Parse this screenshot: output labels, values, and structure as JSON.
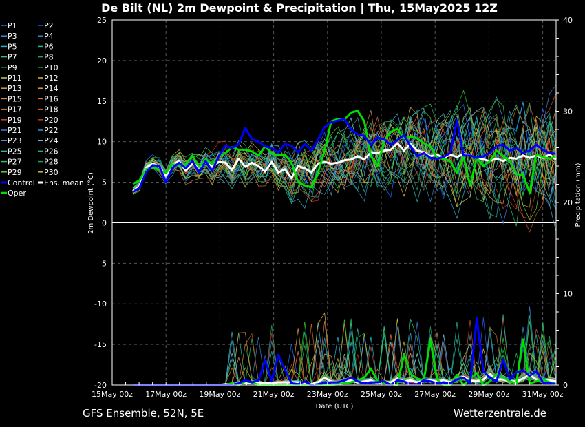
{
  "chart_data": {
    "type": "line",
    "title": "De Bilt  (NL)  2m Dewpoint & Precipitation | Thu, 15May2025 12Z",
    "footer_left": "GFS Ensemble, 52N, 5E",
    "footer_right": "Wetterzentrale.de",
    "xlabel": "Date (UTC)",
    "ylabel_left": "2m Dewpoint (°C)",
    "ylabel_right": "Precipitation (mm)",
    "x_ticks": [
      "15May 00z",
      "17May 00z",
      "19May 00z",
      "21May 00z",
      "23May 00z",
      "25May 00z",
      "27May 00z",
      "29May 00z",
      "31May 00z"
    ],
    "x_start_day": 15,
    "x_end_day": 31,
    "x_step_hours": 6,
    "ylim_left": [
      -20,
      25
    ],
    "y_ticks_left": [
      25,
      20,
      15,
      10,
      5,
      0,
      -5,
      -10,
      -15,
      -20
    ],
    "ylim_right": [
      0,
      40
    ],
    "y_ticks_right": [
      40,
      30,
      20,
      10,
      0
    ],
    "grid": true,
    "legend": {
      "placement": "left",
      "entries": [
        {
          "name": "P1",
          "color": "#1f6fff"
        },
        {
          "name": "P2",
          "color": "#2a5cff"
        },
        {
          "name": "P3",
          "color": "#3d8bd6"
        },
        {
          "name": "P4",
          "color": "#3a7fc8"
        },
        {
          "name": "P5",
          "color": "#2ab3c7"
        },
        {
          "name": "P6",
          "color": "#1fb89a"
        },
        {
          "name": "P7",
          "color": "#2fbf7e"
        },
        {
          "name": "P8",
          "color": "#21a55e"
        },
        {
          "name": "P9",
          "color": "#1dbb4a"
        },
        {
          "name": "P10",
          "color": "#27d22a"
        },
        {
          "name": "P11",
          "color": "#c8c85a"
        },
        {
          "name": "P12",
          "color": "#d8b64a"
        },
        {
          "name": "P13",
          "color": "#c9a640"
        },
        {
          "name": "P14",
          "color": "#d89c3a"
        },
        {
          "name": "P15",
          "color": "#d48a50"
        },
        {
          "name": "P16",
          "color": "#d07840"
        },
        {
          "name": "P17",
          "color": "#d06a30"
        },
        {
          "name": "P18",
          "color": "#c9572a"
        },
        {
          "name": "P19",
          "color": "#c44a2a"
        },
        {
          "name": "P20",
          "color": "#c03a20"
        },
        {
          "name": "P21",
          "color": "#3a7fd8"
        },
        {
          "name": "P22",
          "color": "#2e9ad0"
        },
        {
          "name": "P23",
          "color": "#4aa7d8"
        },
        {
          "name": "P24",
          "color": "#6ec7d8"
        },
        {
          "name": "P25",
          "color": "#2fb7a8"
        },
        {
          "name": "P26",
          "color": "#25b090"
        },
        {
          "name": "P27",
          "color": "#2fc06a"
        },
        {
          "name": "P28",
          "color": "#22a060"
        },
        {
          "name": "P29",
          "color": "#5ecc3a"
        },
        {
          "name": "P30",
          "color": "#c0c030"
        },
        {
          "name": "Control",
          "color": "#0000ff"
        },
        {
          "name": "Ens. mean",
          "color": "#ffffff"
        },
        {
          "name": "Oper",
          "color": "#00dd00"
        }
      ]
    },
    "series": [
      {
        "name": "Control",
        "color": "#0000ff",
        "width": 3,
        "dewpoint": [
          3.8,
          4.3,
          6.2,
          7.1,
          7.0,
          5.0,
          6.8,
          7.4,
          6.7,
          7.6,
          6.2,
          7.6,
          6.4,
          8.2,
          9.5,
          9.2,
          9.7,
          11.7,
          10.3,
          10.0,
          9.4,
          9.2,
          8.7,
          9.7,
          9.5,
          8.7,
          9.7,
          8.9,
          10.2,
          11.8,
          12.4,
          12.6,
          12.8,
          11.5,
          10.9,
          10.7,
          9.6,
          10.5,
          10.3,
          9.6,
          10.2,
          10.8,
          9.4,
          8.2,
          8.6,
          8.0,
          7.9,
          8.1,
          8.6,
          12.6,
          8.3,
          8.3,
          8.0,
          8.2,
          8.6,
          9.5,
          9.6,
          8.9,
          9.2,
          8.6,
          8.9,
          9.6,
          9.0,
          8.6,
          8.5
        ],
        "precip": [
          0,
          0,
          0,
          0,
          0,
          0,
          0,
          0,
          0,
          0,
          0,
          0,
          0,
          0,
          0,
          0,
          0.2,
          0.5,
          0.3,
          0.5,
          2.7,
          0.4,
          3.3,
          1.7,
          0.2,
          0.1,
          0.4,
          0,
          0.1,
          0.2,
          0.3,
          0.3,
          0.5,
          0.8,
          0.4,
          0.2,
          0.3,
          0.3,
          0.4,
          0,
          0.5,
          0.4,
          0.1,
          0.1,
          0.5,
          0.4,
          0.2,
          0.3,
          0.2,
          0.6,
          0.8,
          0.2,
          7.3,
          1.5,
          0.8,
          0.4,
          2.8,
          0.6,
          1.4,
          1.6,
          1.0,
          1.5,
          0.3,
          0.2,
          0.1
        ]
      },
      {
        "name": "Oper",
        "color": "#00dd00",
        "width": 3,
        "dewpoint": [
          4.8,
          5.2,
          6.6,
          6.8,
          6.5,
          6.1,
          7.2,
          7.1,
          7.2,
          8.3,
          6.9,
          7.8,
          7.3,
          8.1,
          8.6,
          9.3,
          9.0,
          9.0,
          8.8,
          8.3,
          9.4,
          8.6,
          8.3,
          8.4,
          7.4,
          5.0,
          4.6,
          4.4,
          6.2,
          8.9,
          12.5,
          12.8,
          12.7,
          13.6,
          13.8,
          12.5,
          8.2,
          7.0,
          10.1,
          11.2,
          11.6,
          10.4,
          10.6,
          10.4,
          9.8,
          9.4,
          8.0,
          7.9,
          7.6,
          6.1,
          8.1,
          4.6,
          8.0,
          7.0,
          7.6,
          8.9,
          8.2,
          7.6,
          6.0,
          5.9,
          3.7,
          8.4,
          8.1,
          7.9,
          8.2
        ],
        "precip": [
          0,
          0,
          0,
          0,
          0,
          0,
          0,
          0,
          0,
          0,
          0,
          0,
          0,
          0,
          0,
          0.2,
          0,
          0.4,
          0.3,
          0,
          0,
          0,
          0,
          0,
          0,
          0,
          0,
          0,
          0,
          0,
          0,
          0.1,
          0.2,
          0.3,
          0.5,
          0.8,
          1.8,
          0.4,
          0.2,
          0.1,
          0,
          3.4,
          1.2,
          0.7,
          0.5,
          4.9,
          0.6,
          0,
          0,
          1.1,
          0,
          0.7,
          1.3,
          0,
          0.4,
          1.2,
          0.8,
          0.4,
          0.2,
          5.0,
          0.2,
          0.4,
          0.6,
          0.3,
          0.1
        ]
      },
      {
        "name": "Ens. mean",
        "color": "#ffffff",
        "width": 3,
        "dewpoint": [
          3.9,
          4.5,
          6.8,
          7.3,
          6.9,
          5.8,
          7.2,
          7.6,
          6.4,
          7.3,
          6.8,
          7.5,
          6.9,
          7.5,
          7.4,
          6.5,
          7.9,
          6.9,
          7.4,
          7.0,
          6.3,
          7.5,
          6.2,
          6.6,
          5.5,
          7.0,
          6.7,
          6.2,
          7.3,
          7.5,
          7.3,
          7.4,
          7.7,
          7.8,
          8.2,
          7.8,
          8.7,
          8.6,
          8.9,
          9.0,
          9.8,
          8.9,
          9.7,
          8.9,
          8.7,
          8.2,
          8.4,
          8.0,
          8.4,
          8.1,
          8.5,
          8.3,
          8.0,
          7.8,
          7.6,
          7.9,
          7.6,
          8.0,
          7.9,
          8.3,
          8.0,
          8.3,
          8.0,
          8.4,
          7.8
        ],
        "precip": [
          0,
          0,
          0,
          0,
          0,
          0,
          0,
          0,
          0,
          0,
          0,
          0,
          0,
          0,
          0.1,
          0.1,
          0.2,
          0.2,
          0.3,
          0.3,
          0.2,
          0.2,
          0.3,
          0.3,
          0.3,
          0.3,
          0.1,
          0.1,
          0.3,
          0.8,
          0.4,
          0.3,
          0.4,
          0.5,
          0.3,
          0.4,
          0.5,
          0.2,
          0.3,
          0.3,
          0.7,
          0.4,
          0.5,
          0.3,
          0.5,
          0.5,
          0.4,
          0.5,
          0.3,
          0.6,
          0.9,
          0.5,
          0.4,
          0.6,
          1.2,
          0.6,
          0.6,
          0.4,
          0.4,
          0.7,
          1.1,
          0.6,
          0.5,
          0.5,
          0.4
        ]
      }
    ]
  }
}
